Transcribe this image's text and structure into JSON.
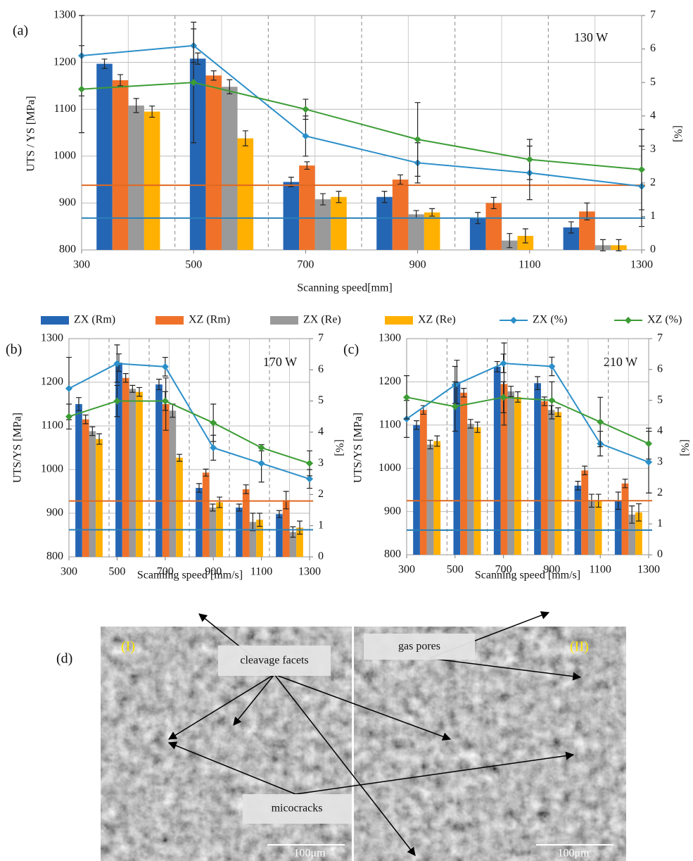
{
  "chart_data": [
    {
      "type": "bar",
      "panel_label": "(a)",
      "annotation": "130 W",
      "xlabel": "Scanning speed[mm]",
      "ylabel": "UTS / YS [MPa]",
      "y2label": "[%]",
      "x": [
        300,
        500,
        700,
        900,
        1100,
        1300
      ],
      "xlim": [
        300,
        1300
      ],
      "xticks": [
        300,
        500,
        700,
        900,
        1100,
        1300
      ],
      "ylim": [
        800,
        1300
      ],
      "yticks": [
        800,
        900,
        1000,
        1100,
        1200,
        1300
      ],
      "y2lim": [
        0,
        7
      ],
      "y2ticks": [
        0,
        1,
        2,
        3,
        4,
        5,
        6,
        7
      ],
      "grid": true,
      "series": [
        {
          "name": "ZX (Rm)",
          "type": "bar",
          "color": "#2566b4",
          "values": [
            1197,
            1208,
            945,
            913,
            868,
            848
          ],
          "errors": [
            10,
            12,
            10,
            12,
            12,
            12
          ]
        },
        {
          "name": "XZ (Rm)",
          "type": "bar",
          "color": "#f0722a",
          "values": [
            1162,
            1172,
            980,
            950,
            900,
            882
          ],
          "errors": [
            12,
            10,
            8,
            10,
            12,
            18
          ]
        },
        {
          "name": "ZX (Re)",
          "type": "bar",
          "color": "#9a9a9a",
          "values": [
            1108,
            1148,
            908,
            876,
            820,
            810
          ],
          "errors": [
            15,
            15,
            12,
            8,
            15,
            12
          ]
        },
        {
          "name": "XZ (Re)",
          "type": "bar",
          "color": "#ffb000",
          "values": [
            1095,
            1038,
            913,
            880,
            830,
            810
          ],
          "errors": [
            12,
            16,
            12,
            8,
            15,
            12
          ]
        },
        {
          "name": "ZX (%)",
          "type": "line",
          "axis": "y2",
          "color": "#2b8fc9",
          "values": [
            5.8,
            6.1,
            3.4,
            2.6,
            2.3,
            1.9
          ],
          "errors": [
            1.2,
            0.5,
            0.6,
            0.6,
            0.8,
            1.2
          ]
        },
        {
          "name": "XZ (%)",
          "type": "line",
          "axis": "y2",
          "color": "#3c9c35",
          "values": [
            4.8,
            5.0,
            4.2,
            3.3,
            2.7,
            2.4
          ],
          "errors": [
            1.3,
            1.8,
            0.3,
            1.1,
            0.6,
            1.2
          ]
        }
      ],
      "hlines": [
        {
          "value": 938,
          "color": "#e06820"
        },
        {
          "value": 868,
          "color": "#2a80b9"
        }
      ]
    },
    {
      "type": "bar",
      "panel_label": "(b)",
      "annotation": "170 W",
      "xlabel": "Scanning speed [mm/s]",
      "ylabel": "UTS/YS [MPa]",
      "y2label": "[%]",
      "x": [
        300,
        500,
        700,
        900,
        1100,
        1300
      ],
      "xlim": [
        300,
        1300
      ],
      "xticks": [
        300,
        500,
        700,
        900,
        1100,
        1300
      ],
      "ylim": [
        800,
        1300
      ],
      "yticks": [
        800,
        900,
        1000,
        1100,
        1200,
        1300
      ],
      "y2lim": [
        0,
        7
      ],
      "y2ticks": [
        0,
        1,
        2,
        3,
        4,
        5,
        6,
        7
      ],
      "grid": true,
      "series": [
        {
          "type": "bar",
          "color": "#2566b4",
          "values": [
            1150,
            1245,
            1195,
            958,
            913,
            898
          ],
          "errors": [
            15,
            20,
            12,
            10,
            8,
            8
          ]
        },
        {
          "type": "bar",
          "color": "#f0722a",
          "values": [
            1115,
            1210,
            1150,
            993,
            955,
            930
          ],
          "errors": [
            10,
            10,
            60,
            8,
            10,
            20
          ]
        },
        {
          "type": "bar",
          "color": "#9a9a9a",
          "values": [
            1088,
            1185,
            1135,
            913,
            880,
            857
          ],
          "errors": [
            10,
            8,
            15,
            8,
            20,
            12
          ]
        },
        {
          "type": "bar",
          "color": "#ffb000",
          "values": [
            1070,
            1178,
            1027,
            925,
            885,
            867
          ],
          "errors": [
            12,
            10,
            8,
            12,
            15,
            15
          ]
        },
        {
          "type": "line",
          "axis": "y2",
          "color": "#2b8fc9",
          "values": [
            5.4,
            6.2,
            6.1,
            3.5,
            3.0,
            2.5
          ],
          "errors": [
            1.0,
            0.6,
            0.3,
            0.4,
            0.6,
            0.3
          ]
        },
        {
          "type": "line",
          "axis": "y2",
          "color": "#3c9c35",
          "values": [
            4.5,
            5.0,
            5.0,
            4.3,
            3.5,
            3.0
          ],
          "errors": [
            0.4,
            0.5,
            0.3,
            0.6,
            0.1,
            0.4
          ]
        }
      ],
      "hlines": [
        {
          "value": 928,
          "color": "#e06820"
        },
        {
          "value": 862,
          "color": "#2a80b9"
        }
      ]
    },
    {
      "type": "bar",
      "panel_label": "(c)",
      "annotation": "210 W",
      "xlabel": "Scanning speed [mm/s]",
      "ylabel": "UTS/YS [MPa]",
      "y2label": "[%]",
      "x": [
        300,
        500,
        700,
        900,
        1100,
        1300
      ],
      "xlim": [
        300,
        1300
      ],
      "xticks": [
        300,
        500,
        700,
        900,
        1100,
        1300
      ],
      "ylim": [
        800,
        1300
      ],
      "yticks": [
        800,
        900,
        1000,
        1100,
        1200,
        1300
      ],
      "y2lim": [
        0,
        7
      ],
      "y2ticks": [
        0,
        1,
        2,
        3,
        4,
        5,
        6,
        7
      ],
      "grid": true,
      "series": [
        {
          "type": "bar",
          "color": "#2566b4",
          "values": [
            1100,
            1200,
            1235,
            1197,
            960,
            925
          ],
          "errors": [
            10,
            50,
            12,
            15,
            10,
            20
          ]
        },
        {
          "type": "bar",
          "color": "#f0722a",
          "values": [
            1135,
            1175,
            1195,
            1155,
            995,
            965
          ],
          "errors": [
            10,
            10,
            95,
            10,
            10,
            10
          ]
        },
        {
          "type": "bar",
          "color": "#9a9a9a",
          "values": [
            1055,
            1103,
            1178,
            1135,
            925,
            893
          ],
          "errors": [
            10,
            10,
            12,
            10,
            15,
            20
          ]
        },
        {
          "type": "bar",
          "color": "#ffb000",
          "values": [
            1063,
            1095,
            1165,
            1130,
            925,
            898
          ],
          "errors": [
            12,
            12,
            12,
            10,
            15,
            20
          ]
        },
        {
          "type": "line",
          "axis": "y2",
          "color": "#2b8fc9",
          "values": [
            4.4,
            5.5,
            6.2,
            6.1,
            3.6,
            3.0
          ],
          "errors": [
            0.6,
            0.6,
            0.3,
            0.3,
            0.4,
            1.0
          ]
        },
        {
          "type": "line",
          "axis": "y2",
          "color": "#3c9c35",
          "values": [
            5.1,
            4.8,
            5.1,
            5.0,
            4.3,
            3.6
          ],
          "errors": [
            0.7,
            0.8,
            0.5,
            0.6,
            0.8,
            0.5
          ]
        }
      ],
      "hlines": [
        {
          "value": 925,
          "color": "#e06820"
        },
        {
          "value": 857,
          "color": "#2a80b9"
        }
      ]
    }
  ],
  "image": {
    "panel_label": "(d)",
    "left_label": "(I)",
    "right_label": "(II)",
    "callouts": [
      "cleavage facets",
      "gas pores",
      "micocracks"
    ],
    "scale_bars": [
      "100μm",
      "100μm"
    ]
  }
}
